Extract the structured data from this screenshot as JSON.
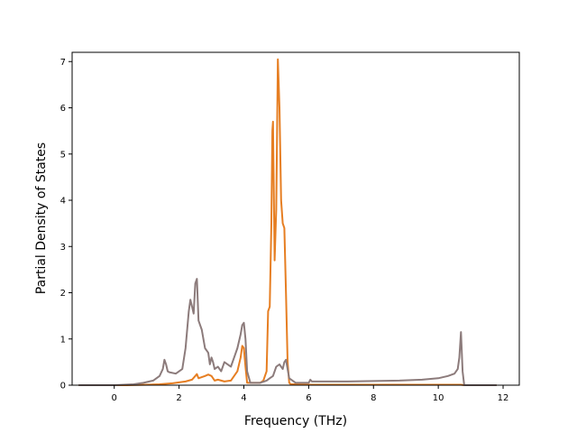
{
  "chart_data": {
    "type": "line",
    "title": "",
    "xlabel": "Frequency (THz)",
    "ylabel": "Partial Density of States",
    "xlim": [
      -1.3,
      12.5
    ],
    "ylim": [
      0,
      7.2
    ],
    "xticks": [
      0,
      2,
      4,
      6,
      8,
      10,
      12
    ],
    "yticks": [
      0,
      1,
      2,
      3,
      4,
      5,
      6,
      7
    ],
    "grid": false,
    "legend": "none",
    "series": [
      {
        "color": "#e67e22",
        "x": [
          -1.1,
          0.0,
          0.4,
          1.0,
          1.4,
          1.8,
          2.2,
          2.4,
          2.5,
          2.55,
          2.6,
          2.8,
          2.9,
          3.0,
          3.1,
          3.2,
          3.4,
          3.6,
          3.8,
          3.9,
          3.95,
          4.0,
          4.05,
          4.1,
          4.3,
          4.5,
          4.6,
          4.7,
          4.75,
          4.8,
          4.85,
          4.88,
          4.9,
          4.95,
          5.0,
          5.05,
          5.1,
          5.15,
          5.2,
          5.25,
          5.3,
          5.35,
          5.4,
          5.45,
          5.6,
          6.0,
          8.0,
          10.0,
          10.7,
          10.8,
          11.8
        ],
        "y": [
          0,
          0,
          0,
          0.01,
          0.02,
          0.04,
          0.08,
          0.12,
          0.2,
          0.24,
          0.15,
          0.2,
          0.23,
          0.2,
          0.1,
          0.12,
          0.08,
          0.1,
          0.3,
          0.6,
          0.85,
          0.8,
          0.4,
          0.05,
          0.05,
          0.05,
          0.1,
          0.3,
          1.6,
          1.7,
          3.5,
          5.5,
          5.7,
          2.7,
          3.8,
          7.05,
          6.0,
          4.0,
          3.5,
          3.4,
          2.0,
          0.5,
          0.05,
          0.02,
          0.02,
          0.01,
          0.01,
          0.01,
          0.01,
          0,
          0
        ]
      },
      {
        "color": "#8c7b7b",
        "x": [
          -1.1,
          0.0,
          0.6,
          0.9,
          1.2,
          1.4,
          1.5,
          1.55,
          1.6,
          1.65,
          1.7,
          1.9,
          2.1,
          2.2,
          2.3,
          2.35,
          2.4,
          2.45,
          2.5,
          2.55,
          2.6,
          2.65,
          2.7,
          2.8,
          2.9,
          2.95,
          3.0,
          3.05,
          3.1,
          3.2,
          3.3,
          3.4,
          3.5,
          3.6,
          3.7,
          3.8,
          3.9,
          3.95,
          4.0,
          4.05,
          4.1,
          4.2,
          4.5,
          4.7,
          4.8,
          4.9,
          5.0,
          5.1,
          5.2,
          5.25,
          5.3,
          5.4,
          5.6,
          6.0,
          6.05,
          6.1,
          7.2,
          8.8,
          9.5,
          10.0,
          10.3,
          10.5,
          10.6,
          10.65,
          10.7,
          10.75,
          10.8,
          11.8
        ],
        "y": [
          0,
          0,
          0.02,
          0.05,
          0.1,
          0.2,
          0.35,
          0.55,
          0.45,
          0.3,
          0.28,
          0.25,
          0.35,
          0.8,
          1.6,
          1.85,
          1.7,
          1.55,
          2.2,
          2.3,
          1.4,
          1.3,
          1.2,
          0.8,
          0.7,
          0.45,
          0.6,
          0.5,
          0.35,
          0.4,
          0.3,
          0.5,
          0.45,
          0.4,
          0.6,
          0.8,
          1.1,
          1.3,
          1.35,
          1.0,
          0.3,
          0.05,
          0.05,
          0.1,
          0.15,
          0.2,
          0.4,
          0.45,
          0.35,
          0.5,
          0.55,
          0.15,
          0.05,
          0.05,
          0.12,
          0.08,
          0.08,
          0.1,
          0.12,
          0.15,
          0.2,
          0.25,
          0.35,
          0.6,
          1.15,
          0.3,
          0.0,
          0.0
        ]
      }
    ]
  }
}
